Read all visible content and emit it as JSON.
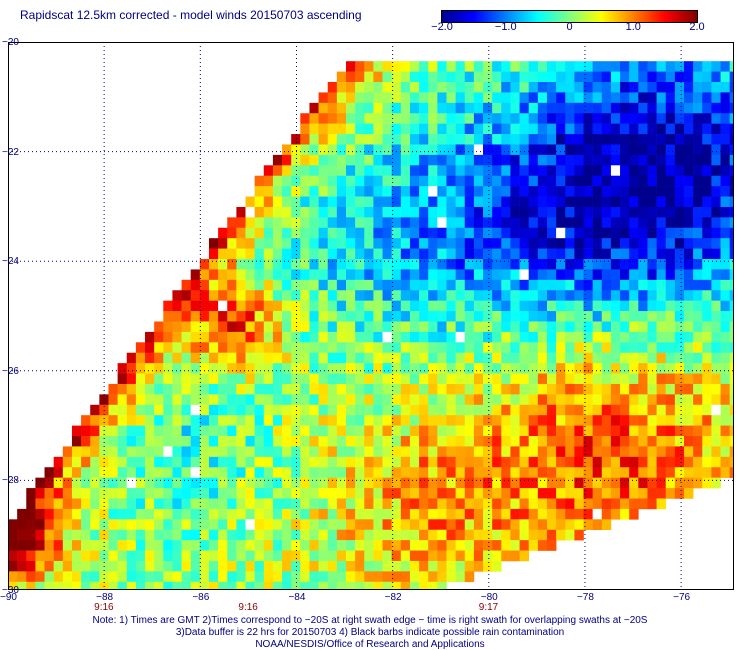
{
  "title": "Rapidscat 12.5km corrected - model winds 20150703 ascending",
  "colorbar": {
    "ticks": [
      {
        "value": -2.0,
        "label": "−2.0"
      },
      {
        "value": -1.0,
        "label": "−1.0"
      },
      {
        "value": 0,
        "label": "0"
      },
      {
        "value": 1.0,
        "label": "1.0"
      },
      {
        "value": 2.0,
        "label": "2.0"
      }
    ],
    "range": [
      -2.0,
      2.0
    ],
    "colors": [
      "#00008f",
      "#0000ff",
      "#0080ff",
      "#00ffff",
      "#80ff80",
      "#ffff00",
      "#ff8000",
      "#ff0000",
      "#800000"
    ]
  },
  "map": {
    "lon_range": [
      -90,
      -74.9
    ],
    "lat_range": [
      -20,
      -30
    ],
    "lon_ticks": [
      {
        "value": -90,
        "label": "−90"
      },
      {
        "value": -88,
        "label": "−88"
      },
      {
        "value": -86,
        "label": "−86"
      },
      {
        "value": -84,
        "label": "−84"
      },
      {
        "value": -82,
        "label": "−82"
      },
      {
        "value": -80,
        "label": "−80"
      },
      {
        "value": -78,
        "label": "−78"
      },
      {
        "value": -76,
        "label": "−76"
      }
    ],
    "lat_ticks": [
      {
        "value": -20,
        "label": "−20"
      },
      {
        "value": -22,
        "label": "−22"
      },
      {
        "value": -24,
        "label": "−24"
      },
      {
        "value": -26,
        "label": "−26"
      },
      {
        "value": -28,
        "label": "−28"
      },
      {
        "value": -30,
        "label": "−30"
      }
    ],
    "time_labels": [
      {
        "lon": -88,
        "label": "9:16"
      },
      {
        "lon": -85,
        "label": "9:16"
      },
      {
        "lon": -80,
        "label": "9:17"
      }
    ],
    "gridline_color": "#000080",
    "no_data_color": "#ffffff"
  },
  "notes": {
    "line1": "Note: 1) Times are GMT 2)Times correspond to −20S at right swath edge − time is right swath for overlapping swaths at −20S",
    "line2": "3)Data buffer is 22 hrs for 20150703 4) Black barbs indicate possible rain contamination",
    "line3": "NOAA/NESDIS/Office of Research and Applications"
  }
}
